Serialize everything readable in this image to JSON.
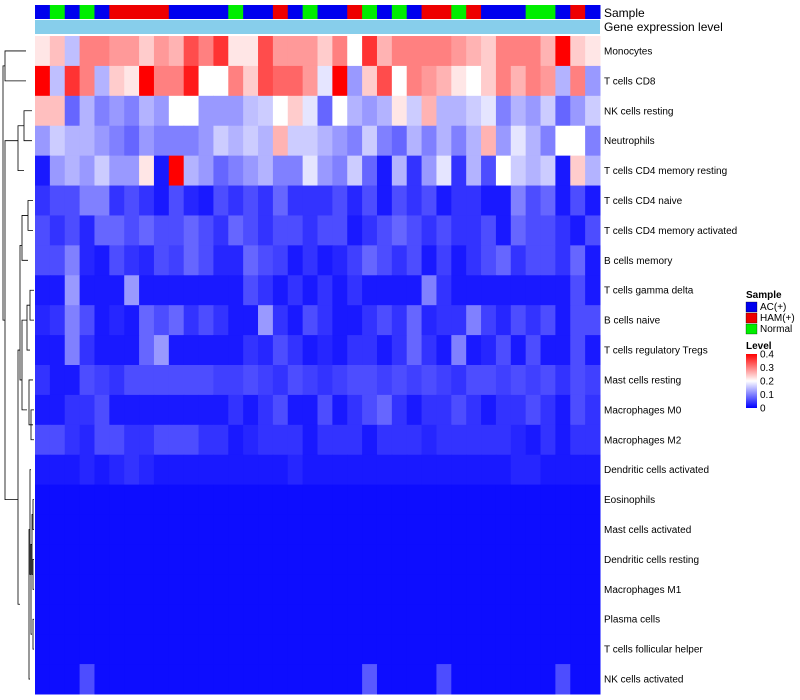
{
  "chart_data": {
    "type": "heatmap",
    "annotation_rows": [
      "Sample",
      "Gene expression level"
    ],
    "rows": [
      "Monocytes",
      "T cells CD8",
      "NK cells resting",
      "Neutrophils",
      "T cells CD4 memory resting",
      "T cells CD4 naive",
      "T cells CD4 memory activated",
      "B cells memory",
      "T cells gamma delta",
      "B cells naive",
      "T cells regulatory  Tregs",
      "Mast cells resting",
      "Macrophages M0",
      "Macrophages M2",
      "Dendritic cells activated",
      "Eosinophils",
      "Mast cells activated",
      "Dendritic cells resting",
      "Macrophages M1",
      "Plasma cells",
      "T cells follicular helper",
      "NK cells activated"
    ],
    "sample_groups": [
      "AC(+)",
      "Normal",
      "AC(+)",
      "Normal",
      "AC(+)",
      "HAM(+)",
      "HAM(+)",
      "HAM(+)",
      "HAM(+)",
      "AC(+)",
      "AC(+)",
      "AC(+)",
      "AC(+)",
      "Normal",
      "AC(+)",
      "AC(+)",
      "HAM(+)",
      "AC(+)",
      "Normal",
      "AC(+)",
      "AC(+)",
      "HAM(+)",
      "Normal",
      "AC(+)",
      "Normal",
      "AC(+)",
      "HAM(+)",
      "HAM(+)",
      "Normal",
      "HAM(+)",
      "AC(+)",
      "AC(+)",
      "AC(+)",
      "Normal",
      "Normal",
      "AC(+)",
      "HAM(+)",
      "AC(+)"
    ],
    "values": [
      [
        0.22,
        0.25,
        0.15,
        0.3,
        0.3,
        0.28,
        0.28,
        0.24,
        0.28,
        0.26,
        0.34,
        0.3,
        0.36,
        0.22,
        0.22,
        0.34,
        0.28,
        0.28,
        0.28,
        0.24,
        0.3,
        0.2,
        0.36,
        0.26,
        0.3,
        0.3,
        0.3,
        0.3,
        0.28,
        0.26,
        0.24,
        0.3,
        0.3,
        0.3,
        0.26,
        0.4,
        0.24,
        0.22
      ],
      [
        0.4,
        0.15,
        0.36,
        0.3,
        0.14,
        0.24,
        0.22,
        0.4,
        0.3,
        0.3,
        0.38,
        0.2,
        0.2,
        0.3,
        0.24,
        0.34,
        0.32,
        0.32,
        0.28,
        0.18,
        0.4,
        0.12,
        0.24,
        0.34,
        0.2,
        0.3,
        0.28,
        0.26,
        0.22,
        0.2,
        0.24,
        0.3,
        0.26,
        0.3,
        0.28,
        0.14,
        0.3,
        0.12
      ],
      [
        0.25,
        0.25,
        0.08,
        0.14,
        0.1,
        0.12,
        0.1,
        0.14,
        0.12,
        0.2,
        0.2,
        0.12,
        0.12,
        0.12,
        0.15,
        0.16,
        0.2,
        0.24,
        0.18,
        0.08,
        0.2,
        0.14,
        0.12,
        0.14,
        0.22,
        0.16,
        0.26,
        0.14,
        0.14,
        0.16,
        0.18,
        0.1,
        0.14,
        0.12,
        0.16,
        0.08,
        0.12,
        0.16
      ],
      [
        0.12,
        0.16,
        0.14,
        0.14,
        0.12,
        0.1,
        0.08,
        0.12,
        0.1,
        0.1,
        0.1,
        0.12,
        0.16,
        0.14,
        0.16,
        0.14,
        0.26,
        0.16,
        0.16,
        0.14,
        0.12,
        0.1,
        0.16,
        0.1,
        0.08,
        0.14,
        0.1,
        0.14,
        0.1,
        0.14,
        0.26,
        0.12,
        0.18,
        0.14,
        0.1,
        0.2,
        0.2,
        0.1
      ],
      [
        0.02,
        0.12,
        0.14,
        0.12,
        0.16,
        0.12,
        0.12,
        0.22,
        0.02,
        0.4,
        0.14,
        0.12,
        0.08,
        0.1,
        0.12,
        0.14,
        0.1,
        0.1,
        0.18,
        0.12,
        0.1,
        0.16,
        0.08,
        0.02,
        0.14,
        0.04,
        0.12,
        0.18,
        0.04,
        0.14,
        0.06,
        0.2,
        0.16,
        0.14,
        0.16,
        0.02,
        0.24,
        0.14
      ],
      [
        0.04,
        0.06,
        0.06,
        0.1,
        0.1,
        0.04,
        0.06,
        0.04,
        0.02,
        0.06,
        0.03,
        0.02,
        0.06,
        0.04,
        0.06,
        0.04,
        0.08,
        0.04,
        0.04,
        0.04,
        0.06,
        0.03,
        0.06,
        0.02,
        0.06,
        0.04,
        0.06,
        0.02,
        0.04,
        0.04,
        0.02,
        0.02,
        0.1,
        0.06,
        0.08,
        0.02,
        0.06,
        0.02
      ],
      [
        0.06,
        0.04,
        0.06,
        0.03,
        0.08,
        0.08,
        0.06,
        0.08,
        0.06,
        0.06,
        0.08,
        0.06,
        0.04,
        0.08,
        0.06,
        0.04,
        0.06,
        0.06,
        0.04,
        0.06,
        0.06,
        0.02,
        0.04,
        0.06,
        0.08,
        0.06,
        0.04,
        0.06,
        0.04,
        0.04,
        0.06,
        0.02,
        0.08,
        0.06,
        0.06,
        0.04,
        0.02,
        0.06
      ],
      [
        0.06,
        0.06,
        0.1,
        0.03,
        0.02,
        0.06,
        0.04,
        0.03,
        0.06,
        0.05,
        0.08,
        0.06,
        0.03,
        0.03,
        0.08,
        0.06,
        0.05,
        0.02,
        0.04,
        0.02,
        0.03,
        0.05,
        0.08,
        0.06,
        0.04,
        0.06,
        0.02,
        0.05,
        0.02,
        0.04,
        0.06,
        0.08,
        0.04,
        0.06,
        0.06,
        0.04,
        0.08,
        0.02
      ],
      [
        0.02,
        0.02,
        0.12,
        0.02,
        0.02,
        0.02,
        0.12,
        0.02,
        0.02,
        0.02,
        0.02,
        0.02,
        0.02,
        0.02,
        0.06,
        0.04,
        0.02,
        0.04,
        0.02,
        0.04,
        0.02,
        0.04,
        0.02,
        0.02,
        0.02,
        0.02,
        0.1,
        0.04,
        0.02,
        0.02,
        0.02,
        0.02,
        0.02,
        0.02,
        0.02,
        0.02,
        0.06,
        0.02
      ],
      [
        0.03,
        0.04,
        0.1,
        0.06,
        0.02,
        0.03,
        0.02,
        0.08,
        0.06,
        0.08,
        0.04,
        0.06,
        0.04,
        0.02,
        0.02,
        0.12,
        0.04,
        0.02,
        0.06,
        0.04,
        0.02,
        0.02,
        0.04,
        0.06,
        0.04,
        0.08,
        0.03,
        0.04,
        0.04,
        0.1,
        0.05,
        0.03,
        0.06,
        0.04,
        0.06,
        0.02,
        0.06,
        0.06
      ],
      [
        0.02,
        0.02,
        0.1,
        0.04,
        0.02,
        0.02,
        0.02,
        0.08,
        0.12,
        0.02,
        0.02,
        0.02,
        0.02,
        0.02,
        0.04,
        0.03,
        0.06,
        0.04,
        0.02,
        0.03,
        0.02,
        0.04,
        0.04,
        0.02,
        0.04,
        0.08,
        0.04,
        0.02,
        0.1,
        0.02,
        0.03,
        0.06,
        0.02,
        0.06,
        0.02,
        0.02,
        0.06,
        0.02
      ],
      [
        0.04,
        0.02,
        0.02,
        0.06,
        0.05,
        0.04,
        0.06,
        0.06,
        0.06,
        0.06,
        0.06,
        0.06,
        0.05,
        0.05,
        0.06,
        0.05,
        0.04,
        0.06,
        0.05,
        0.04,
        0.05,
        0.06,
        0.06,
        0.05,
        0.06,
        0.05,
        0.06,
        0.05,
        0.04,
        0.06,
        0.06,
        0.05,
        0.06,
        0.05,
        0.06,
        0.04,
        0.06,
        0.05
      ],
      [
        0.02,
        0.02,
        0.04,
        0.04,
        0.06,
        0.02,
        0.02,
        0.02,
        0.02,
        0.02,
        0.02,
        0.02,
        0.02,
        0.04,
        0.02,
        0.04,
        0.06,
        0.02,
        0.02,
        0.06,
        0.02,
        0.04,
        0.06,
        0.08,
        0.04,
        0.02,
        0.04,
        0.04,
        0.06,
        0.04,
        0.02,
        0.04,
        0.04,
        0.06,
        0.04,
        0.02,
        0.06,
        0.04
      ],
      [
        0.06,
        0.06,
        0.04,
        0.03,
        0.06,
        0.06,
        0.04,
        0.04,
        0.06,
        0.06,
        0.06,
        0.04,
        0.04,
        0.02,
        0.03,
        0.04,
        0.04,
        0.04,
        0.02,
        0.04,
        0.04,
        0.04,
        0.02,
        0.04,
        0.04,
        0.04,
        0.03,
        0.04,
        0.04,
        0.04,
        0.04,
        0.04,
        0.03,
        0.02,
        0.04,
        0.02,
        0.04,
        0.04
      ],
      [
        0.02,
        0.02,
        0.02,
        0.03,
        0.02,
        0.03,
        0.04,
        0.03,
        0.02,
        0.02,
        0.02,
        0.02,
        0.02,
        0.02,
        0.02,
        0.02,
        0.02,
        0.03,
        0.02,
        0.02,
        0.02,
        0.02,
        0.02,
        0.02,
        0.02,
        0.02,
        0.02,
        0.02,
        0.02,
        0.02,
        0.02,
        0.02,
        0.03,
        0.03,
        0.02,
        0.02,
        0.02,
        0.02
      ],
      [
        0.01,
        0.01,
        0.01,
        0.01,
        0.01,
        0.01,
        0.01,
        0.01,
        0.01,
        0.01,
        0.01,
        0.01,
        0.01,
        0.01,
        0.01,
        0.01,
        0.01,
        0.01,
        0.01,
        0.01,
        0.01,
        0.01,
        0.01,
        0.01,
        0.01,
        0.01,
        0.01,
        0.01,
        0.01,
        0.01,
        0.01,
        0.01,
        0.01,
        0.01,
        0.01,
        0.01,
        0.01,
        0.01
      ],
      [
        0.01,
        0.01,
        0.01,
        0.01,
        0.01,
        0.01,
        0.01,
        0.01,
        0.01,
        0.01,
        0.01,
        0.01,
        0.01,
        0.01,
        0.01,
        0.01,
        0.01,
        0.01,
        0.01,
        0.01,
        0.01,
        0.01,
        0.01,
        0.01,
        0.01,
        0.01,
        0.01,
        0.01,
        0.01,
        0.01,
        0.01,
        0.01,
        0.01,
        0.01,
        0.01,
        0.01,
        0.01,
        0.01
      ],
      [
        0.01,
        0.01,
        0.01,
        0.01,
        0.01,
        0.01,
        0.01,
        0.01,
        0.01,
        0.01,
        0.01,
        0.01,
        0.01,
        0.01,
        0.01,
        0.01,
        0.01,
        0.01,
        0.01,
        0.01,
        0.01,
        0.01,
        0.01,
        0.01,
        0.01,
        0.01,
        0.01,
        0.01,
        0.01,
        0.01,
        0.01,
        0.01,
        0.01,
        0.01,
        0.01,
        0.01,
        0.01,
        0.01
      ],
      [
        0.01,
        0.01,
        0.01,
        0.01,
        0.01,
        0.01,
        0.01,
        0.01,
        0.01,
        0.01,
        0.01,
        0.01,
        0.01,
        0.01,
        0.01,
        0.01,
        0.01,
        0.01,
        0.01,
        0.01,
        0.01,
        0.01,
        0.01,
        0.01,
        0.01,
        0.01,
        0.01,
        0.01,
        0.01,
        0.01,
        0.01,
        0.01,
        0.01,
        0.01,
        0.01,
        0.01,
        0.01,
        0.01
      ],
      [
        0.01,
        0.01,
        0.01,
        0.01,
        0.01,
        0.01,
        0.01,
        0.01,
        0.01,
        0.01,
        0.01,
        0.01,
        0.01,
        0.01,
        0.01,
        0.01,
        0.01,
        0.01,
        0.01,
        0.01,
        0.01,
        0.01,
        0.01,
        0.01,
        0.01,
        0.01,
        0.01,
        0.01,
        0.01,
        0.01,
        0.01,
        0.01,
        0.01,
        0.01,
        0.01,
        0.01,
        0.01,
        0.01
      ],
      [
        0.01,
        0.01,
        0.01,
        0.01,
        0.01,
        0.01,
        0.01,
        0.01,
        0.01,
        0.01,
        0.01,
        0.01,
        0.01,
        0.01,
        0.01,
        0.01,
        0.01,
        0.01,
        0.01,
        0.01,
        0.01,
        0.01,
        0.01,
        0.01,
        0.01,
        0.01,
        0.01,
        0.01,
        0.01,
        0.01,
        0.01,
        0.01,
        0.01,
        0.01,
        0.01,
        0.01,
        0.01,
        0.01
      ],
      [
        0.01,
        0.01,
        0.01,
        0.06,
        0.01,
        0.01,
        0.01,
        0.01,
        0.01,
        0.01,
        0.01,
        0.01,
        0.01,
        0.01,
        0.01,
        0.01,
        0.01,
        0.01,
        0.01,
        0.01,
        0.01,
        0.01,
        0.07,
        0.01,
        0.01,
        0.01,
        0.01,
        0.06,
        0.01,
        0.01,
        0.01,
        0.01,
        0.01,
        0.01,
        0.01,
        0.06,
        0.01,
        0.01
      ]
    ],
    "legend": {
      "sample_title": "Sample",
      "groups": [
        {
          "name": "AC(+)",
          "color": "#0000ee"
        },
        {
          "name": "HAM(+)",
          "color": "#ee0000"
        },
        {
          "name": "Normal",
          "color": "#00ee00"
        }
      ],
      "level_title": "Level",
      "level_ticks": [
        0.4,
        0.3,
        0.2,
        0.1,
        0
      ],
      "level_tick_labels": [
        "0.4",
        "0.3",
        "0.2",
        "0.1",
        "0"
      ],
      "color_scale": {
        "low": "#0000ff",
        "mid": "#ffffff",
        "high": "#ff0000",
        "min": 0,
        "mid_value": 0.2,
        "max": 0.4
      }
    },
    "expression_bar_color": "#87ceeb"
  }
}
